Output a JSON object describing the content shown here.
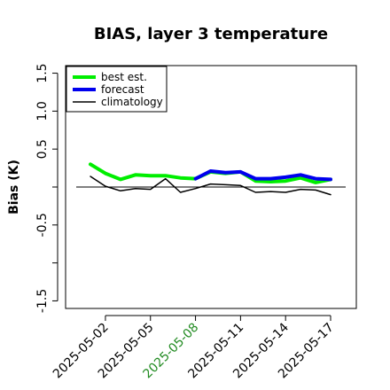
{
  "chart_data": {
    "type": "line",
    "title": "BIAS, layer 3 temperature",
    "xlabel": "",
    "ylabel": "Bias (K)",
    "ylim": [
      -1.6,
      1.6
    ],
    "y_ticks": [
      "-1.5",
      "",
      "-0.5",
      "",
      "0.5",
      "1.0",
      "1.5"
    ],
    "y_tick_values": [
      -1.5,
      -1.0,
      -0.5,
      0.0,
      0.5,
      1.0,
      1.5
    ],
    "x": [
      "2025-05-01",
      "2025-05-02",
      "2025-05-03",
      "2025-05-04",
      "2025-05-05",
      "2025-05-06",
      "2025-05-07",
      "2025-05-08",
      "2025-05-09",
      "2025-05-10",
      "2025-05-11",
      "2025-05-12",
      "2025-05-13",
      "2025-05-14",
      "2025-05-15",
      "2025-05-16",
      "2025-05-17"
    ],
    "x_ticks": [
      {
        "label": "2025-05-02",
        "color": "#000000"
      },
      {
        "label": "2025-05-05",
        "color": "#000000"
      },
      {
        "label": "2025-05-08",
        "color": "#228b22"
      },
      {
        "label": "2025-05-11",
        "color": "#000000"
      },
      {
        "label": "2025-05-14",
        "color": "#000000"
      },
      {
        "label": "2025-05-17",
        "color": "#000000"
      }
    ],
    "reference_line": 0.0,
    "grid": false,
    "legend_position": "top-left",
    "series": [
      {
        "name": "best est.",
        "color": "#00ee00",
        "values": [
          0.3,
          0.18,
          0.1,
          0.16,
          0.15,
          0.15,
          0.12,
          0.11,
          0.2,
          0.18,
          0.2,
          0.08,
          0.07,
          0.08,
          0.12,
          0.06,
          0.1
        ]
      },
      {
        "name": "forecast",
        "color": "#0000ee",
        "values": [
          null,
          null,
          null,
          null,
          null,
          null,
          null,
          0.11,
          0.21,
          0.19,
          0.2,
          0.11,
          0.11,
          0.13,
          0.16,
          0.11,
          0.1
        ]
      },
      {
        "name": "climatology",
        "color": "#000000",
        "values": [
          0.14,
          0.01,
          -0.05,
          -0.02,
          -0.03,
          0.11,
          -0.07,
          -0.02,
          0.04,
          0.03,
          0.02,
          -0.07,
          -0.06,
          -0.07,
          -0.03,
          -0.04,
          -0.1
        ]
      }
    ]
  }
}
